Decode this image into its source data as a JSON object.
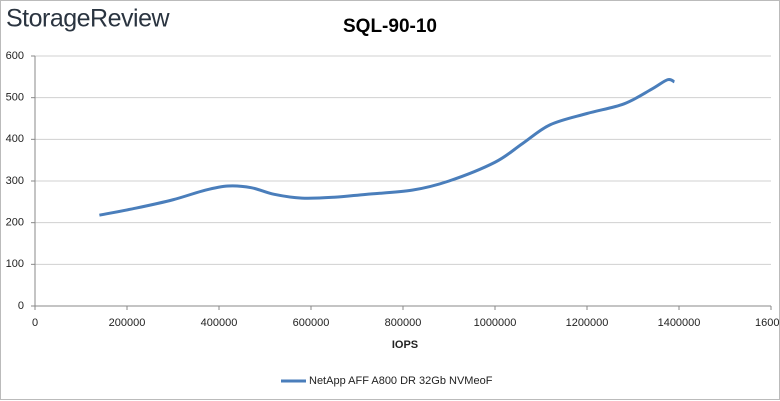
{
  "brand": "StorageReview",
  "chart_data": {
    "type": "line",
    "title": "SQL-90-10",
    "x_label": "IOPS",
    "x": [
      140000,
      220000,
      300000,
      370000,
      420000,
      470000,
      520000,
      580000,
      650000,
      720000,
      820000,
      900000,
      1000000,
      1060000,
      1120000,
      1200000,
      1280000,
      1340000,
      1375000,
      1390000
    ],
    "series": [
      {
        "name": "NetApp AFF A800 DR 32Gb NVMeoF",
        "color": "#4a7ebb",
        "values": [
          218,
          235,
          255,
          278,
          288,
          284,
          268,
          259,
          261,
          268,
          278,
          300,
          345,
          390,
          435,
          462,
          485,
          520,
          543,
          538
        ]
      }
    ],
    "xlim": [
      0,
      1600000
    ],
    "xticks": [
      0,
      200000,
      400000,
      600000,
      800000,
      1000000,
      1200000,
      1400000,
      {
        "value": 1600000,
        "label": "1600"
      }
    ],
    "ylim": [
      0,
      600
    ],
    "yticks": [
      0,
      100,
      200,
      300,
      400,
      500,
      600
    ],
    "grid": true
  }
}
